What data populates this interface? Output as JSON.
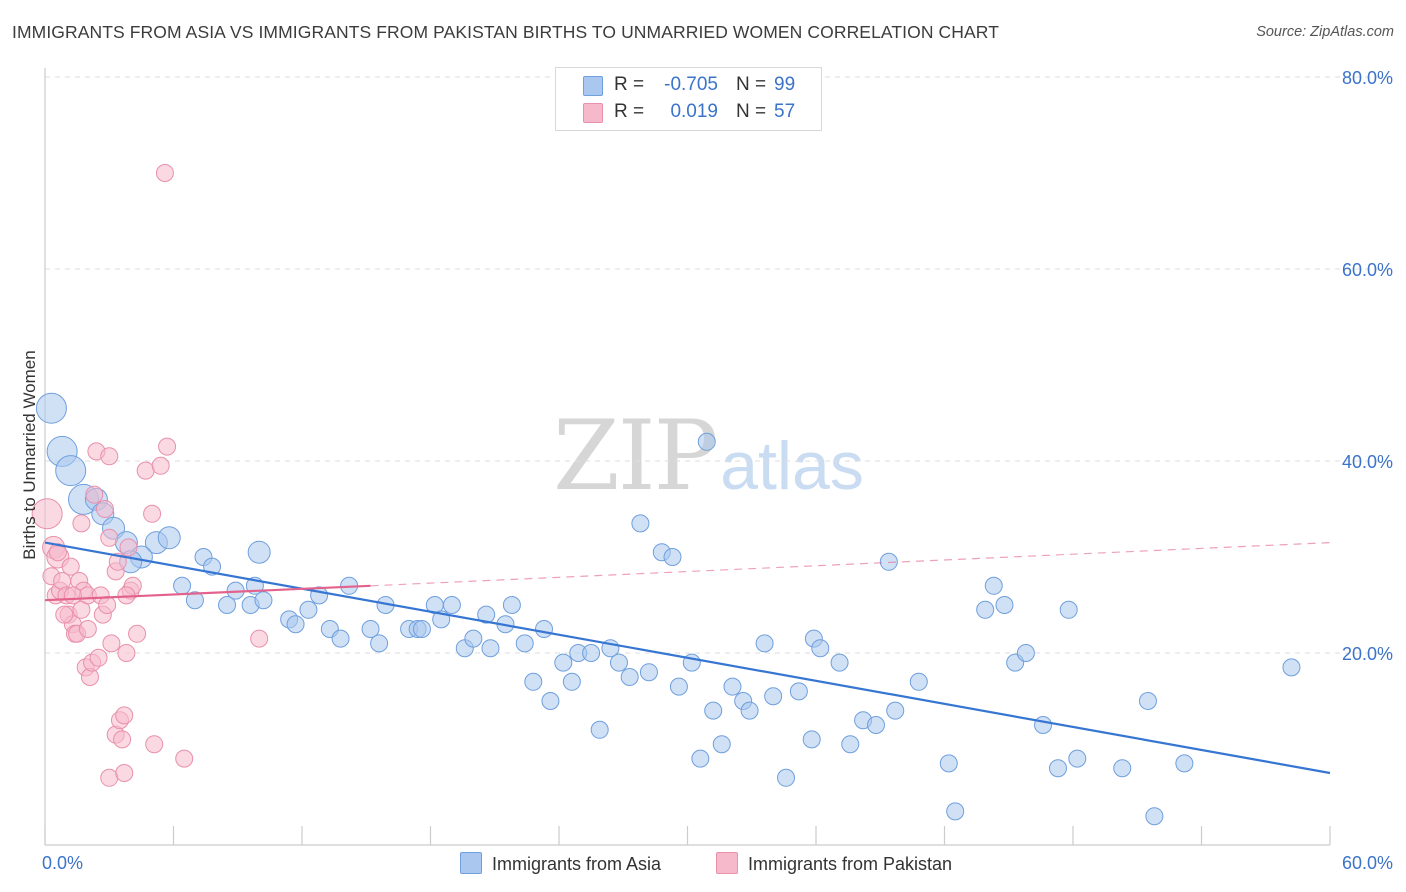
{
  "title": "IMMIGRANTS FROM ASIA VS IMMIGRANTS FROM PAKISTAN BIRTHS TO UNMARRIED WOMEN CORRELATION CHART",
  "source": "Source: ZipAtlas.com",
  "watermark": {
    "zip": "ZIP",
    "atlas": "atlas"
  },
  "colors": {
    "asia_fill": "#aac8ef",
    "asia_stroke": "#6f9fdd",
    "asia_line": "#3676d2",
    "pak_fill": "#f6b9cc",
    "pak_stroke": "#e990ab",
    "pak_line": "#e2628c",
    "axis_text": "#3b73c9",
    "grid": "#dddddd"
  },
  "stats": {
    "asia": {
      "r_label": "R =",
      "r_value": "-0.705",
      "n_label": "N =",
      "n_value": "99"
    },
    "pakistan": {
      "r_label": "R =",
      "r_value": "0.019",
      "n_label": "N =",
      "n_value": "57"
    }
  },
  "legend": {
    "asia": "Immigrants from Asia",
    "pakistan": "Immigrants from Pakistan"
  },
  "chart_data": {
    "type": "scatter",
    "title": "IMMIGRANTS FROM ASIA VS IMMIGRANTS FROM PAKISTAN BIRTHS TO UNMARRIED WOMEN CORRELATION CHART",
    "xlabel": "",
    "ylabel": "Births to Unmarried Women",
    "xlim": [
      0,
      60
    ],
    "ylim": [
      0,
      80
    ],
    "x_tick_labels": [
      "0.0%",
      "60.0%"
    ],
    "y_ticks": [
      20,
      40,
      60,
      80
    ],
    "y_tick_labels": [
      "20.0%",
      "40.0%",
      "60.0%",
      "80.0%"
    ],
    "grid": true,
    "series": [
      {
        "name": "Immigrants from Asia",
        "color": "#aac8ef",
        "trend": {
          "x0": 0,
          "y0": 31.5,
          "x1": 60,
          "y1": 7.5,
          "style": "solid"
        },
        "points": [
          {
            "x": 0.3,
            "y": 45.5,
            "s": 3
          },
          {
            "x": 0.8,
            "y": 41,
            "s": 3
          },
          {
            "x": 1.2,
            "y": 39,
            "s": 3
          },
          {
            "x": 1.8,
            "y": 36,
            "s": 3
          },
          {
            "x": 2.4,
            "y": 36,
            "s": 2
          },
          {
            "x": 2.7,
            "y": 34.5,
            "s": 2
          },
          {
            "x": 3.2,
            "y": 33,
            "s": 2
          },
          {
            "x": 3.8,
            "y": 31.5,
            "s": 2
          },
          {
            "x": 5.2,
            "y": 31.5,
            "s": 2
          },
          {
            "x": 5.8,
            "y": 32,
            "s": 2
          },
          {
            "x": 4.5,
            "y": 30,
            "s": 2
          },
          {
            "x": 4,
            "y": 29.5,
            "s": 2
          },
          {
            "x": 10,
            "y": 30.5,
            "s": 2
          },
          {
            "x": 7.4,
            "y": 30,
            "s": 1
          },
          {
            "x": 7.8,
            "y": 29,
            "s": 1
          },
          {
            "x": 6.4,
            "y": 27,
            "s": 1
          },
          {
            "x": 7,
            "y": 25.5,
            "s": 1
          },
          {
            "x": 8.5,
            "y": 25,
            "s": 1
          },
          {
            "x": 8.9,
            "y": 26.5,
            "s": 1
          },
          {
            "x": 9.6,
            "y": 25,
            "s": 1
          },
          {
            "x": 9.8,
            "y": 27,
            "s": 1
          },
          {
            "x": 10.2,
            "y": 25.5,
            "s": 1
          },
          {
            "x": 11.4,
            "y": 23.5,
            "s": 1
          },
          {
            "x": 11.7,
            "y": 23,
            "s": 1
          },
          {
            "x": 12.3,
            "y": 24.5,
            "s": 1
          },
          {
            "x": 12.8,
            "y": 26,
            "s": 1
          },
          {
            "x": 14.2,
            "y": 27,
            "s": 1
          },
          {
            "x": 13.3,
            "y": 22.5,
            "s": 1
          },
          {
            "x": 13.8,
            "y": 21.5,
            "s": 1
          },
          {
            "x": 15.2,
            "y": 22.5,
            "s": 1
          },
          {
            "x": 15.6,
            "y": 21,
            "s": 1
          },
          {
            "x": 15.9,
            "y": 25,
            "s": 1
          },
          {
            "x": 17,
            "y": 22.5,
            "s": 1
          },
          {
            "x": 17.4,
            "y": 22.5,
            "s": 1
          },
          {
            "x": 17.6,
            "y": 22.5,
            "s": 1
          },
          {
            "x": 18.2,
            "y": 25,
            "s": 1
          },
          {
            "x": 18.5,
            "y": 23.5,
            "s": 1
          },
          {
            "x": 19,
            "y": 25,
            "s": 1
          },
          {
            "x": 19.6,
            "y": 20.5,
            "s": 1
          },
          {
            "x": 20,
            "y": 21.5,
            "s": 1
          },
          {
            "x": 20.6,
            "y": 24,
            "s": 1
          },
          {
            "x": 20.8,
            "y": 20.5,
            "s": 1
          },
          {
            "x": 21.5,
            "y": 23,
            "s": 1
          },
          {
            "x": 21.8,
            "y": 25,
            "s": 1
          },
          {
            "x": 22.4,
            "y": 21,
            "s": 1
          },
          {
            "x": 22.8,
            "y": 17,
            "s": 1
          },
          {
            "x": 23.3,
            "y": 22.5,
            "s": 1
          },
          {
            "x": 23.6,
            "y": 15,
            "s": 1
          },
          {
            "x": 24.2,
            "y": 19,
            "s": 1
          },
          {
            "x": 24.6,
            "y": 17,
            "s": 1
          },
          {
            "x": 24.9,
            "y": 20,
            "s": 1
          },
          {
            "x": 25.5,
            "y": 20,
            "s": 1
          },
          {
            "x": 25.9,
            "y": 12,
            "s": 1
          },
          {
            "x": 26.4,
            "y": 20.5,
            "s": 1
          },
          {
            "x": 26.8,
            "y": 19,
            "s": 1
          },
          {
            "x": 27.3,
            "y": 17.5,
            "s": 1
          },
          {
            "x": 27.8,
            "y": 33.5,
            "s": 1
          },
          {
            "x": 28.2,
            "y": 18,
            "s": 1
          },
          {
            "x": 28.8,
            "y": 30.5,
            "s": 1
          },
          {
            "x": 29.3,
            "y": 30,
            "s": 1
          },
          {
            "x": 29.6,
            "y": 16.5,
            "s": 1
          },
          {
            "x": 30.2,
            "y": 19,
            "s": 1
          },
          {
            "x": 30.6,
            "y": 9,
            "s": 1
          },
          {
            "x": 30.9,
            "y": 42,
            "s": 1
          },
          {
            "x": 31.2,
            "y": 14,
            "s": 1
          },
          {
            "x": 31.6,
            "y": 10.5,
            "s": 1
          },
          {
            "x": 32.1,
            "y": 16.5,
            "s": 1
          },
          {
            "x": 32.6,
            "y": 15,
            "s": 1
          },
          {
            "x": 32.9,
            "y": 14,
            "s": 1
          },
          {
            "x": 33.6,
            "y": 21,
            "s": 1
          },
          {
            "x": 34,
            "y": 15.5,
            "s": 1
          },
          {
            "x": 34.6,
            "y": 7,
            "s": 1
          },
          {
            "x": 35.2,
            "y": 16,
            "s": 1
          },
          {
            "x": 35.8,
            "y": 11,
            "s": 1
          },
          {
            "x": 35.9,
            "y": 21.5,
            "s": 1
          },
          {
            "x": 36.2,
            "y": 20.5,
            "s": 1
          },
          {
            "x": 37.1,
            "y": 19,
            "s": 1
          },
          {
            "x": 37.6,
            "y": 10.5,
            "s": 1
          },
          {
            "x": 38.2,
            "y": 13,
            "s": 1
          },
          {
            "x": 38.8,
            "y": 12.5,
            "s": 1
          },
          {
            "x": 39.4,
            "y": 29.5,
            "s": 1
          },
          {
            "x": 39.7,
            "y": 14,
            "s": 1
          },
          {
            "x": 40.8,
            "y": 17,
            "s": 1
          },
          {
            "x": 42.2,
            "y": 8.5,
            "s": 1
          },
          {
            "x": 42.5,
            "y": 3.5,
            "s": 1
          },
          {
            "x": 43.9,
            "y": 24.5,
            "s": 1
          },
          {
            "x": 44.3,
            "y": 27,
            "s": 1
          },
          {
            "x": 44.8,
            "y": 25,
            "s": 1
          },
          {
            "x": 45.3,
            "y": 19,
            "s": 1
          },
          {
            "x": 45.8,
            "y": 20,
            "s": 1
          },
          {
            "x": 46.6,
            "y": 12.5,
            "s": 1
          },
          {
            "x": 47.3,
            "y": 8,
            "s": 1
          },
          {
            "x": 47.8,
            "y": 24.5,
            "s": 1
          },
          {
            "x": 48.2,
            "y": 9,
            "s": 1
          },
          {
            "x": 50.3,
            "y": 8,
            "s": 1
          },
          {
            "x": 51.5,
            "y": 15,
            "s": 1
          },
          {
            "x": 51.8,
            "y": 3,
            "s": 1
          },
          {
            "x": 53.2,
            "y": 8.5,
            "s": 1
          },
          {
            "x": 58.2,
            "y": 18.5,
            "s": 1
          }
        ]
      },
      {
        "name": "Immigrants from Pakistan",
        "color": "#f6b9cc",
        "trend": {
          "x0": 0,
          "y0": 25.5,
          "x1": 15.2,
          "y1": 27,
          "style": "solid"
        },
        "trend_ext": {
          "x0": 15.2,
          "y0": 27,
          "x1": 60,
          "y1": 31.5,
          "style": "dashed"
        },
        "points": [
          {
            "x": 0.1,
            "y": 34.5,
            "s": 3
          },
          {
            "x": 0.4,
            "y": 31,
            "s": 2
          },
          {
            "x": 0.6,
            "y": 30,
            "s": 2
          },
          {
            "x": 0.3,
            "y": 28,
            "s": 1
          },
          {
            "x": 0.5,
            "y": 26,
            "s": 1
          },
          {
            "x": 0.7,
            "y": 26.5,
            "s": 1
          },
          {
            "x": 0.8,
            "y": 27.5,
            "s": 1
          },
          {
            "x": 1,
            "y": 26,
            "s": 1
          },
          {
            "x": 1.1,
            "y": 24,
            "s": 1
          },
          {
            "x": 1.3,
            "y": 23,
            "s": 1
          },
          {
            "x": 1.2,
            "y": 29,
            "s": 1
          },
          {
            "x": 1.4,
            "y": 22,
            "s": 1
          },
          {
            "x": 1.5,
            "y": 22,
            "s": 1
          },
          {
            "x": 1.6,
            "y": 27.5,
            "s": 1
          },
          {
            "x": 1.8,
            "y": 26.5,
            "s": 1
          },
          {
            "x": 1.7,
            "y": 24.5,
            "s": 1
          },
          {
            "x": 1.9,
            "y": 18.5,
            "s": 1
          },
          {
            "x": 2,
            "y": 26,
            "s": 1
          },
          {
            "x": 2,
            "y": 22.5,
            "s": 1
          },
          {
            "x": 2.1,
            "y": 17.5,
            "s": 1
          },
          {
            "x": 2.2,
            "y": 19,
            "s": 1
          },
          {
            "x": 2.3,
            "y": 36.5,
            "s": 1
          },
          {
            "x": 2.4,
            "y": 41,
            "s": 1
          },
          {
            "x": 2.5,
            "y": 19.5,
            "s": 1
          },
          {
            "x": 2.6,
            "y": 26,
            "s": 1
          },
          {
            "x": 2.7,
            "y": 24,
            "s": 1
          },
          {
            "x": 2.8,
            "y": 35,
            "s": 1
          },
          {
            "x": 3,
            "y": 40.5,
            "s": 1
          },
          {
            "x": 3,
            "y": 32,
            "s": 1
          },
          {
            "x": 3.1,
            "y": 21,
            "s": 1
          },
          {
            "x": 3.3,
            "y": 28.5,
            "s": 1
          },
          {
            "x": 3.4,
            "y": 29.5,
            "s": 1
          },
          {
            "x": 3.3,
            "y": 11.5,
            "s": 1
          },
          {
            "x": 3.5,
            "y": 13,
            "s": 1
          },
          {
            "x": 3.6,
            "y": 11,
            "s": 1
          },
          {
            "x": 3.7,
            "y": 13.5,
            "s": 1
          },
          {
            "x": 3.8,
            "y": 20,
            "s": 1
          },
          {
            "x": 3.9,
            "y": 31,
            "s": 1
          },
          {
            "x": 4,
            "y": 26.5,
            "s": 1
          },
          {
            "x": 4.1,
            "y": 27,
            "s": 1
          },
          {
            "x": 4.3,
            "y": 22,
            "s": 1
          },
          {
            "x": 4.7,
            "y": 39,
            "s": 1
          },
          {
            "x": 5,
            "y": 34.5,
            "s": 1
          },
          {
            "x": 5.1,
            "y": 10.5,
            "s": 1
          },
          {
            "x": 5.4,
            "y": 39.5,
            "s": 1
          },
          {
            "x": 5.6,
            "y": 70,
            "s": 1
          },
          {
            "x": 5.7,
            "y": 41.5,
            "s": 1
          },
          {
            "x": 6.5,
            "y": 9,
            "s": 1
          },
          {
            "x": 10,
            "y": 21.5,
            "s": 1
          },
          {
            "x": 3,
            "y": 7,
            "s": 1
          },
          {
            "x": 3.7,
            "y": 7.5,
            "s": 1
          },
          {
            "x": 1.7,
            "y": 33.5,
            "s": 1
          },
          {
            "x": 2.9,
            "y": 25,
            "s": 1
          },
          {
            "x": 0.9,
            "y": 24,
            "s": 1
          },
          {
            "x": 1.3,
            "y": 26,
            "s": 1
          },
          {
            "x": 3.8,
            "y": 26,
            "s": 1
          },
          {
            "x": 0.6,
            "y": 30.5,
            "s": 1
          }
        ]
      }
    ]
  }
}
